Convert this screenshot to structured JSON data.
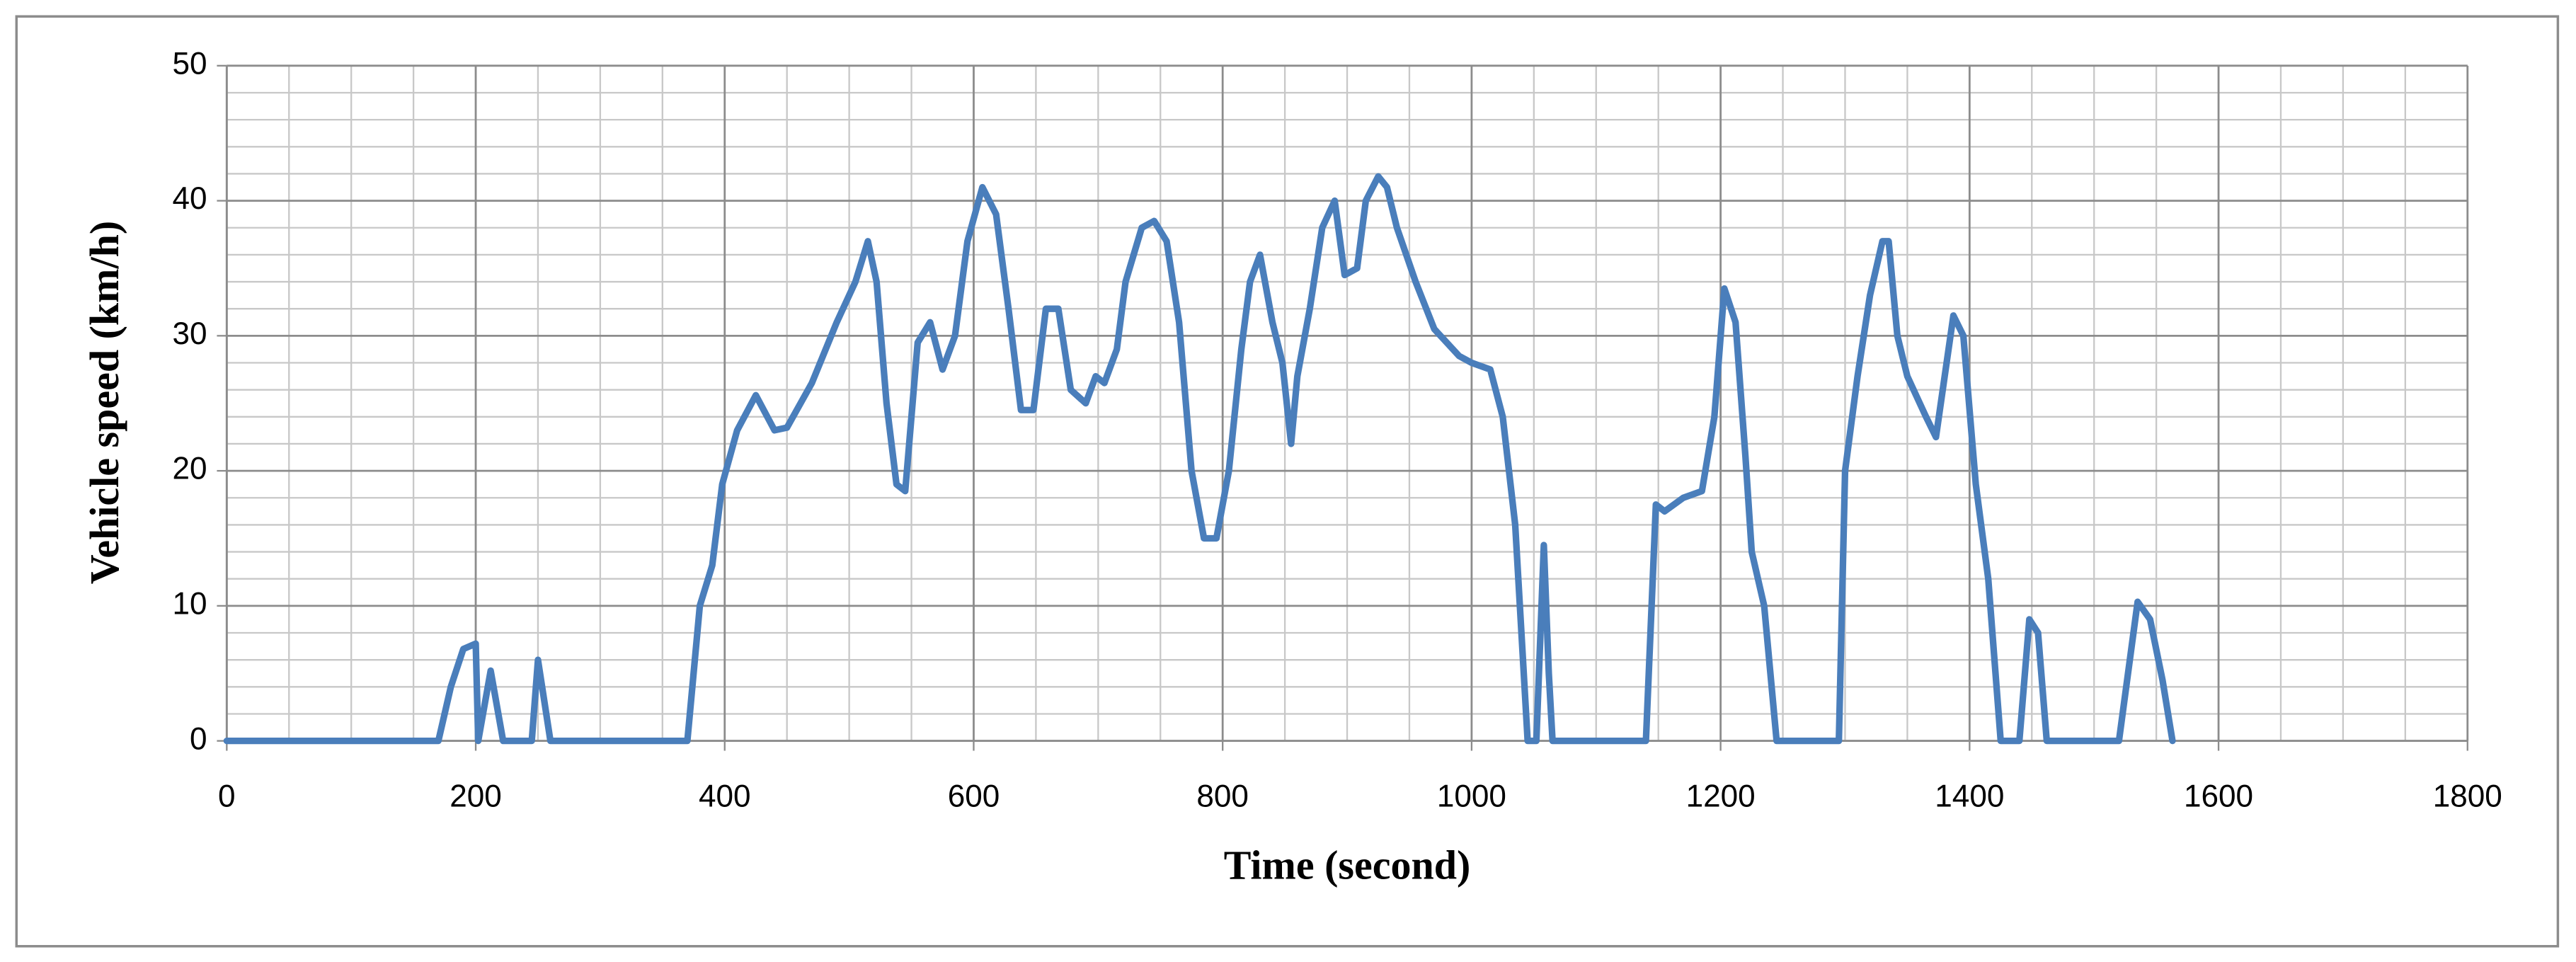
{
  "chart_data": {
    "type": "line",
    "x_label": "Time (second)",
    "y_label": "Vehicle speed (km/h)",
    "xlim": [
      0,
      1800
    ],
    "ylim": [
      0,
      50
    ],
    "xticks": [
      0,
      200,
      400,
      600,
      800,
      1000,
      1200,
      1400,
      1600,
      1800
    ],
    "yticks": [
      0,
      10,
      20,
      30,
      40,
      50
    ],
    "x_minor_step": 50,
    "y_minor_step": 2,
    "grid": true,
    "x": [
      0,
      170,
      180,
      190,
      200,
      202,
      212,
      222,
      245,
      250,
      260,
      370,
      380,
      390,
      398,
      410,
      425,
      440,
      450,
      470,
      490,
      505,
      515,
      522,
      530,
      538,
      545,
      555,
      565,
      575,
      585,
      595,
      607,
      618,
      628,
      638,
      648,
      658,
      668,
      678,
      690,
      698,
      705,
      715,
      722,
      735,
      745,
      755,
      765,
      775,
      785,
      795,
      805,
      815,
      822,
      830,
      840,
      848,
      855,
      860,
      870,
      880,
      890,
      898,
      908,
      915,
      925,
      932,
      940,
      955,
      970,
      990,
      1000,
      1015,
      1025,
      1035,
      1045,
      1052,
      1058,
      1062,
      1065,
      1140,
      1148,
      1155,
      1170,
      1185,
      1195,
      1203,
      1212,
      1220,
      1225,
      1235,
      1245,
      1295,
      1300,
      1310,
      1320,
      1330,
      1335,
      1342,
      1350,
      1365,
      1373,
      1380,
      1387,
      1395,
      1405,
      1415,
      1425,
      1440,
      1448,
      1455,
      1462,
      1520,
      1535,
      1545,
      1555,
      1563
    ],
    "series": [
      {
        "name": "Vehicle speed",
        "color": "#4a7ebb",
        "values": [
          0,
          0,
          4,
          6.8,
          7.2,
          0,
          5.2,
          0,
          0,
          6,
          0,
          0,
          10,
          13,
          19,
          23,
          25.6,
          23,
          23.2,
          26.5,
          31,
          34,
          37,
          34,
          25,
          19,
          18.5,
          29.5,
          31,
          27.5,
          30,
          37,
          41,
          39,
          32,
          24.5,
          24.5,
          32,
          32,
          26,
          25,
          27,
          26.5,
          29,
          34,
          38,
          38.5,
          37,
          31,
          20,
          15,
          15,
          20,
          29,
          34,
          36,
          31,
          28,
          22,
          27,
          32,
          38,
          40,
          34.5,
          35,
          40,
          41.8,
          41,
          38,
          34,
          30.5,
          28.5,
          28,
          27.5,
          24,
          16,
          0,
          0,
          14.5,
          5,
          0,
          0,
          17.5,
          17,
          18,
          18.5,
          24,
          33.5,
          31,
          21,
          14,
          10,
          0,
          0,
          20,
          27,
          33,
          37,
          37,
          30,
          27,
          24,
          22.5,
          27,
          31.5,
          30,
          19,
          12,
          0,
          0,
          9,
          8,
          0,
          0,
          10.3,
          9,
          4.5,
          0
        ]
      }
    ]
  }
}
